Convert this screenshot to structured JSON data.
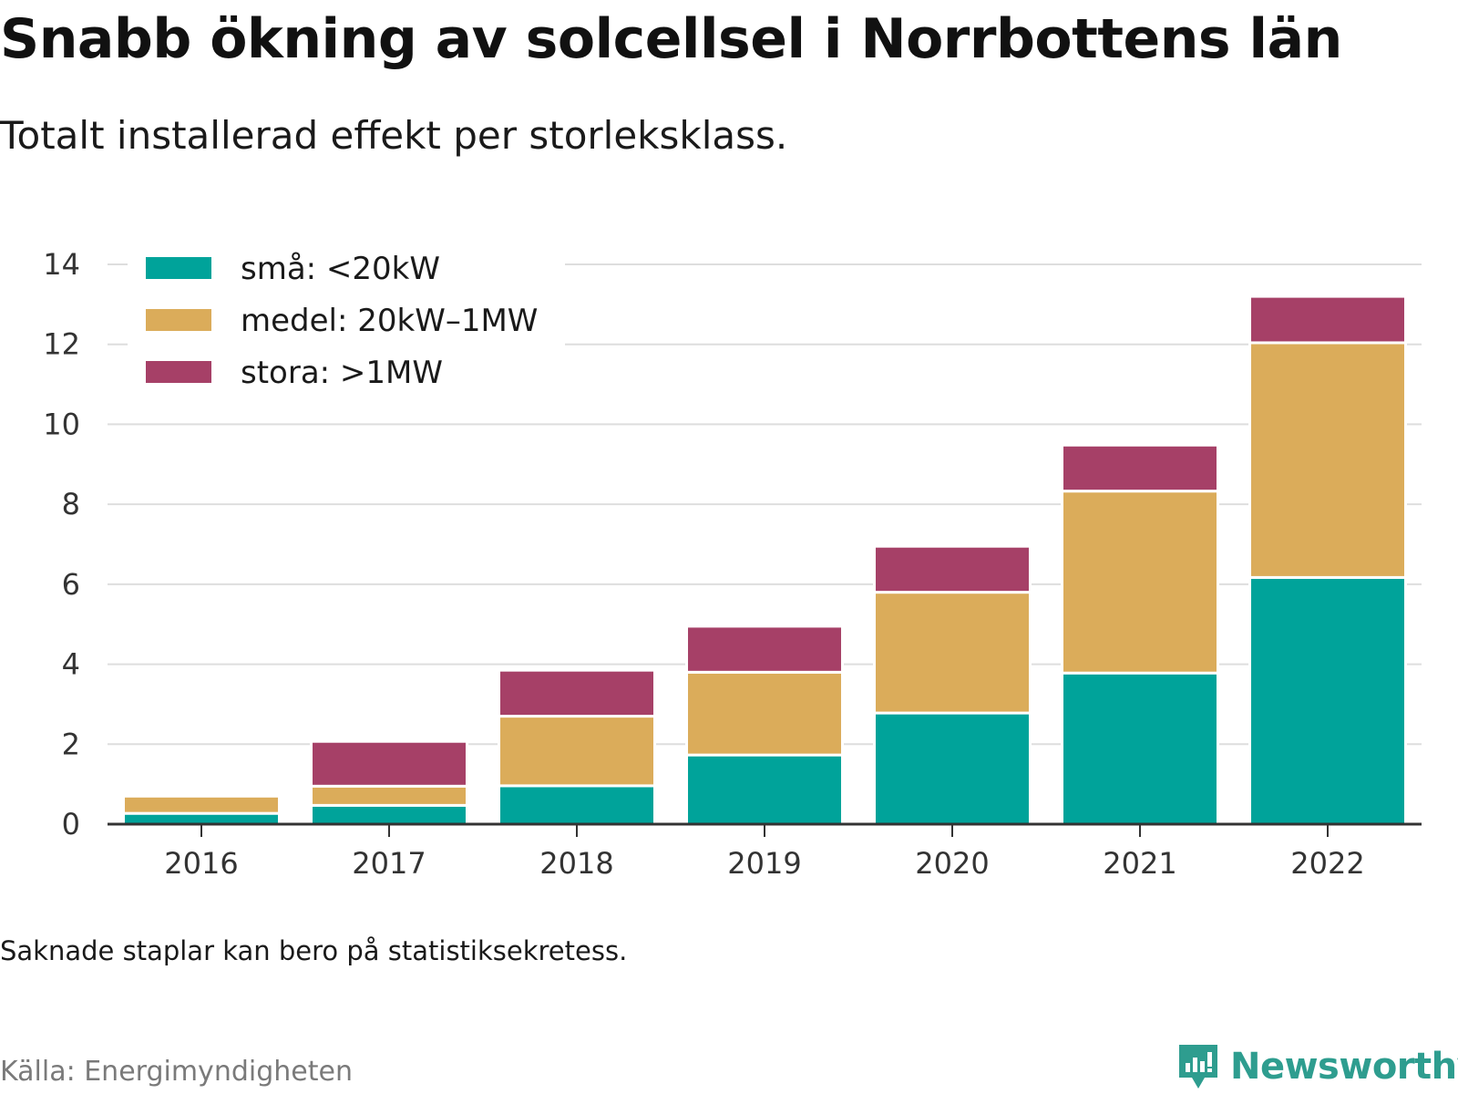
{
  "header": {
    "title": "Snabb ökning av solcellsel i Norrbottens län",
    "subtitle": "Totalt installerad effekt per storleksklass."
  },
  "footer": {
    "note": "Saknade staplar kan bero på statistiksekretess.",
    "source": "Källa: Energimyndigheten",
    "brand": "Newsworthy",
    "brand_color": "#2e9d8f"
  },
  "chart_data": {
    "type": "bar",
    "stacked": true,
    "categories": [
      "2016",
      "2017",
      "2018",
      "2019",
      "2020",
      "2021",
      "2022"
    ],
    "series": [
      {
        "name": "små: <20kW",
        "color": "#00a39a",
        "values": [
          0.27,
          0.47,
          0.96,
          1.73,
          2.78,
          3.78,
          6.17
        ]
      },
      {
        "name": "medel: 20kW–1MW",
        "color": "#dbac5a",
        "values": [
          0.43,
          0.48,
          1.74,
          2.07,
          3.02,
          4.55,
          5.87
        ]
      },
      {
        "name": "stora: >1MW",
        "color": "#a64067",
        "values": [
          0.0,
          1.12,
          1.15,
          1.15,
          1.15,
          1.15,
          1.16
        ]
      }
    ],
    "title": "",
    "xlabel": "",
    "ylabel": "",
    "ylim": [
      0,
      14
    ],
    "yticks": [
      0,
      2,
      4,
      6,
      8,
      10,
      12,
      14
    ],
    "grid": true,
    "legend_position": "top-left"
  }
}
